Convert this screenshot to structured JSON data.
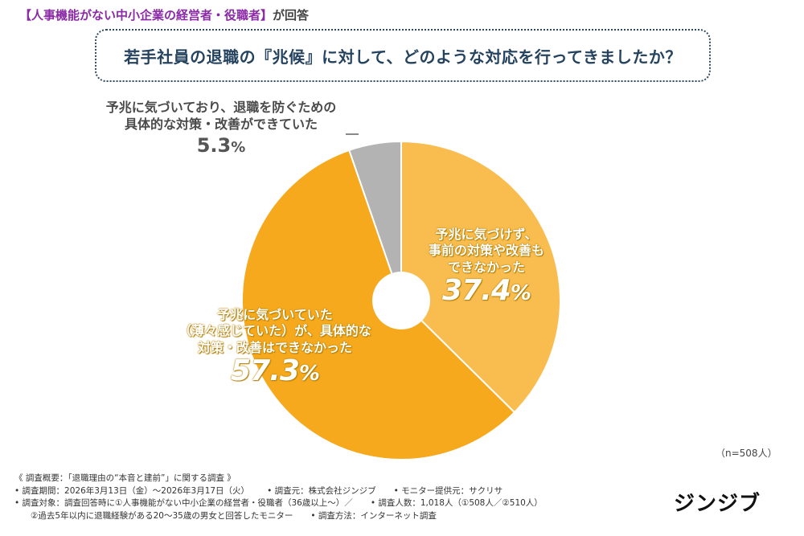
{
  "header": {
    "subtitle": "【人事機能がない中小企業の経営者・役職者】",
    "subtitle_suffix": "が回答",
    "question": "若手社員の退職の『兆候』に対して、どのような対応を行ってきましたか？"
  },
  "chart_data": {
    "type": "pie",
    "title": "若手社員の退職の『兆候』に対して、どのような対応を行ってきましたか？",
    "start_angle_deg": 0,
    "direction": "clockwise",
    "donut": true,
    "slices": [
      {
        "label": "予兆に気づけず、事前の対策や改善もできなかった",
        "value": 37.4,
        "color": "#f9bd4f"
      },
      {
        "label": "予兆に気づいていた（薄々感じていた）が、具体的な対策・改善はできなかった",
        "value": 57.3,
        "color": "#f6a91c"
      },
      {
        "label": "予兆に気づいており、退職を防ぐための具体的な対策・改善ができていた",
        "value": 5.3,
        "color": "#b3b3b3"
      }
    ]
  },
  "labels": {
    "a_line1": "予兆に気づけず、",
    "a_line2": "事前の対策や改善も",
    "a_line3": "できなかった",
    "a_pct_num": "37.4",
    "b_line1": "予兆に気づいていた",
    "b_line2": "（薄々感じていた）が、具体的な",
    "b_line3": "対策・改善はできなかった",
    "b_pct_num": "57.3",
    "c_line1": "予兆に気づいており、退職を防ぐための",
    "c_line2": "具体的な対策・改善ができていた",
    "c_pct_num": "5.3",
    "pct_sign": "%"
  },
  "sample": "（n=508人）",
  "notes": {
    "l1": "《 調査概要：「退職理由の“本音と建前”」に関する調査 》",
    "l2a": "• 調査期間：2026年3月13日（金）〜2026年3月17日（火）",
    "l2b": "• 調査元：株式会社ジンジブ",
    "l2c": "• モニター提供元：サクリサ",
    "l3a": "• 調査対象：調査回答時に①人事機能がない中小企業の経営者・役職者（36歳以上〜）／",
    "l3b": "• 調査人数：1,018人（①508人／②510人）",
    "l4a": "②過去5年以内に退職経験がある20〜35歳の男女と回答したモニター",
    "l4b": "• 調査方法：インターネット調査"
  },
  "logo": "ジンジブ"
}
